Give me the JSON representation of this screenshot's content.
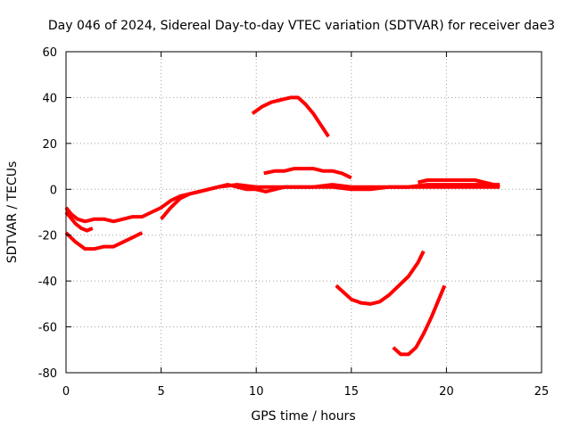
{
  "chart_data": {
    "type": "line",
    "title": "Day 046 of 2024, Sidereal Day-to-day VTEC variation (SDTVAR) for receiver dae3",
    "xlabel": "GPS time / hours",
    "ylabel": "SDTVAR / TECUs",
    "xlim": [
      0,
      25
    ],
    "ylim": [
      -80,
      60
    ],
    "xticks": [
      0,
      5,
      10,
      15,
      20,
      25
    ],
    "yticks": [
      -80,
      -60,
      -40,
      -20,
      0,
      20,
      40,
      60
    ],
    "grid": true,
    "color": "#ff0000",
    "series": [
      {
        "name": "trace-1",
        "x": [
          0.0,
          0.3,
          0.6,
          1.0,
          1.5,
          2.0,
          2.5,
          3.0,
          3.5,
          4.0,
          4.5,
          5.0,
          5.5,
          6.0,
          6.5,
          7.0,
          7.5,
          8.0,
          8.5,
          9.0,
          9.5,
          10.0,
          10.5,
          11.0,
          11.5,
          12.0,
          13.0,
          14.0,
          15.0,
          16.0,
          17.0,
          18.0,
          19.0,
          20.0,
          21.0,
          22.0,
          22.8
        ],
        "y": [
          -8,
          -11,
          -13,
          -14,
          -13,
          -13,
          -14,
          -13,
          -12,
          -12,
          -10,
          -8,
          -5,
          -3,
          -2,
          -1,
          0,
          1,
          2,
          1,
          0,
          0,
          -1,
          0,
          1,
          1,
          1,
          2,
          1,
          1,
          1,
          1,
          1,
          1,
          1,
          1,
          1
        ]
      },
      {
        "name": "trace-2",
        "x": [
          0.0,
          0.2,
          0.5,
          0.8,
          1.1,
          1.4
        ],
        "y": [
          -10,
          -12,
          -15,
          -17,
          -18,
          -17
        ]
      },
      {
        "name": "trace-3",
        "x": [
          0.0,
          0.5,
          1.0,
          1.5,
          2.0,
          2.5,
          3.0,
          3.5,
          4.0
        ],
        "y": [
          -19,
          -23,
          -26,
          -26,
          -25,
          -25,
          -23,
          -21,
          -19
        ]
      },
      {
        "name": "trace-4",
        "x": [
          5.0,
          5.5,
          6.0,
          6.5,
          7.0,
          8.0,
          9.0,
          10.0,
          11.0,
          12.0,
          13.0,
          14.0,
          15.0,
          16.0,
          17.0,
          18.0,
          19.0,
          20.0,
          21.0,
          22.0,
          22.8
        ],
        "y": [
          -13,
          -8,
          -4,
          -2,
          -1,
          1,
          2,
          1,
          1,
          1,
          1,
          1,
          0,
          0,
          1,
          1,
          2,
          2,
          2,
          2,
          2
        ]
      },
      {
        "name": "trace-5",
        "x": [
          18.5,
          19.0,
          19.5,
          20.0,
          20.5,
          21.0,
          21.5,
          22.0,
          22.5,
          22.8
        ],
        "y": [
          3,
          4,
          4,
          4,
          4,
          4,
          4,
          3,
          2,
          1
        ]
      },
      {
        "name": "trace-6",
        "x": [
          9.8,
          10.3,
          10.8,
          11.3,
          11.8,
          12.2,
          12.6,
          13.0,
          13.4,
          13.8
        ],
        "y": [
          33,
          36,
          38,
          39,
          40,
          40,
          37,
          33,
          28,
          23
        ]
      },
      {
        "name": "trace-7",
        "x": [
          10.4,
          11.0,
          11.5,
          12.0,
          12.5,
          13.0,
          13.5,
          14.0,
          14.5,
          15.0
        ],
        "y": [
          7,
          8,
          8,
          9,
          9,
          9,
          8,
          8,
          7,
          5
        ]
      },
      {
        "name": "trace-8",
        "x": [
          14.2,
          14.6,
          15.0,
          15.5,
          16.0,
          16.5,
          17.0,
          17.5,
          18.0,
          18.5,
          18.8
        ],
        "y": [
          -42,
          -45,
          -48,
          -49.5,
          -50,
          -49,
          -46,
          -42,
          -38,
          -32,
          -27
        ]
      },
      {
        "name": "trace-9",
        "x": [
          17.2,
          17.6,
          18.0,
          18.4,
          18.8,
          19.2,
          19.6,
          19.9
        ],
        "y": [
          -69,
          -72,
          -72,
          -69,
          -63,
          -56,
          -48,
          -42
        ]
      }
    ]
  }
}
